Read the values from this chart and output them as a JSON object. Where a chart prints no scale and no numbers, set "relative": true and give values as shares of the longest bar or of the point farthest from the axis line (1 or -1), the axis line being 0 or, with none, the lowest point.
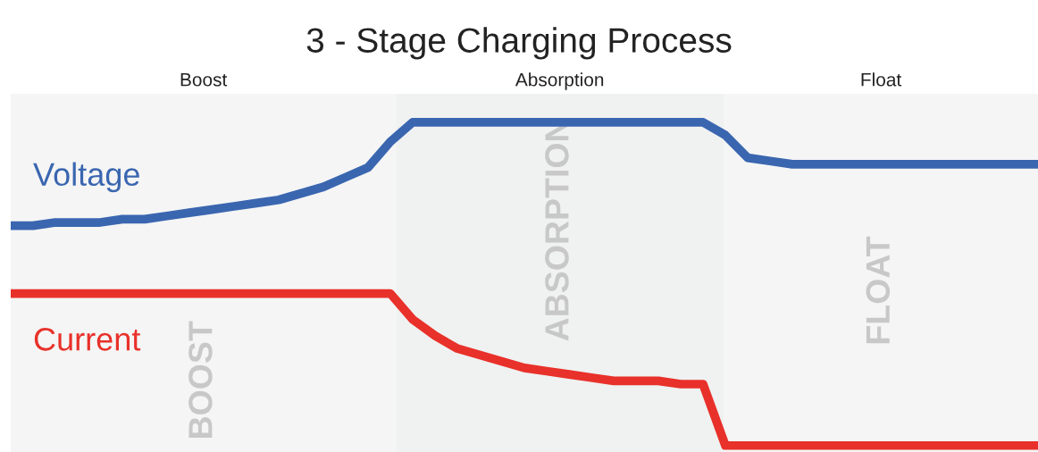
{
  "chart_data": {
    "type": "line",
    "title": "3 - Stage Charging Process",
    "relative": true,
    "legend": false,
    "grid": false,
    "marker": "none",
    "line_style": "solid",
    "categories": [
      null,
      null,
      null,
      null,
      null,
      null,
      null,
      null,
      null,
      null,
      null,
      null,
      null,
      null,
      null,
      null,
      null,
      null,
      null,
      null,
      null,
      null,
      null,
      null,
      null,
      null,
      null,
      null,
      null,
      null,
      null,
      null,
      null,
      null,
      null,
      null,
      null,
      null,
      null,
      null,
      null,
      null,
      null,
      null,
      null,
      null,
      null
    ],
    "series": [
      {
        "name": "Voltage",
        "color": "#3a66b0",
        "values": [
          0.68,
          0.68,
          0.69,
          0.69,
          0.69,
          0.7,
          0.7,
          0.71,
          0.72,
          0.73,
          0.74,
          0.75,
          0.76,
          0.78,
          0.8,
          0.83,
          0.86,
          0.94,
          1.0,
          1.0,
          1.0,
          1.0,
          1.0,
          1.0,
          1.0,
          1.0,
          1.0,
          1.0,
          1.0,
          1.0,
          1.0,
          1.0,
          0.96,
          0.89,
          0.88,
          0.87,
          0.87,
          0.87,
          0.87,
          0.87,
          0.87,
          0.87,
          0.87,
          0.87,
          0.87,
          0.87,
          0.87
        ]
      },
      {
        "name": "Current",
        "color": "#e8312a",
        "values": [
          0.47,
          0.47,
          0.47,
          0.47,
          0.47,
          0.47,
          0.47,
          0.47,
          0.47,
          0.47,
          0.47,
          0.47,
          0.47,
          0.47,
          0.47,
          0.47,
          0.47,
          0.47,
          0.39,
          0.34,
          0.3,
          0.28,
          0.26,
          0.24,
          0.23,
          0.22,
          0.21,
          0.2,
          0.2,
          0.2,
          0.19,
          0.19,
          0,
          0,
          0,
          0,
          0,
          0,
          0,
          0,
          0,
          0,
          0,
          0,
          0,
          0,
          0
        ]
      }
    ],
    "annotations": [
      "Boost",
      "Absorption",
      "Float",
      "BOOST",
      "ABSORPTION",
      "FLOAT"
    ]
  }
}
